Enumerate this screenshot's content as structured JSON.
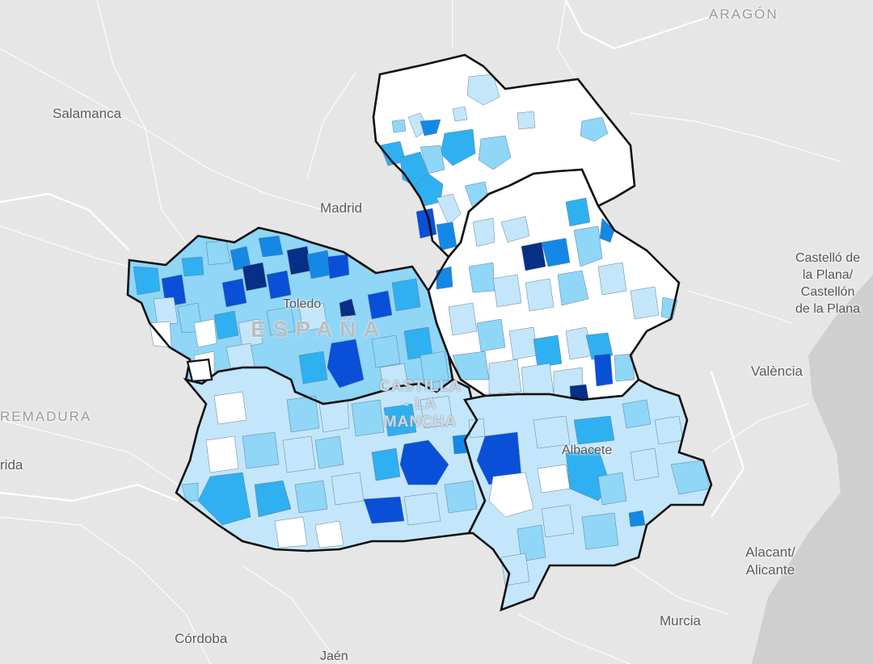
{
  "map": {
    "labels": {
      "aragon": "ARAGÓN",
      "salamanca": "Salamanca",
      "madrid": "Madrid",
      "castellon": "Castelló de\nla Plana/\nCastellón\nde la Plana",
      "valencia": "València",
      "extremadura": "REMADURA",
      "merida": "rida",
      "toledo": "Toledo",
      "espana": "ESPAÑA",
      "castilla": "CASTILLA\n- LA\nMANCHA",
      "albacete": "Albacete",
      "alicante": "Alacant/\nAlicante",
      "murcia": "Murcia",
      "cordoba": "Córdoba",
      "jaen": "Jaén"
    },
    "colors": {
      "background": "#e6e6e6",
      "sea": "#cfcfcf",
      "boundary": "#111111",
      "class_1": "#ffffff",
      "class_2": "#c4e6fb",
      "class_3": "#8fd6f7",
      "class_4": "#2fb0f0",
      "class_5": "#1488e6",
      "class_6": "#0a4fd8",
      "class_7": "#072f86"
    }
  }
}
